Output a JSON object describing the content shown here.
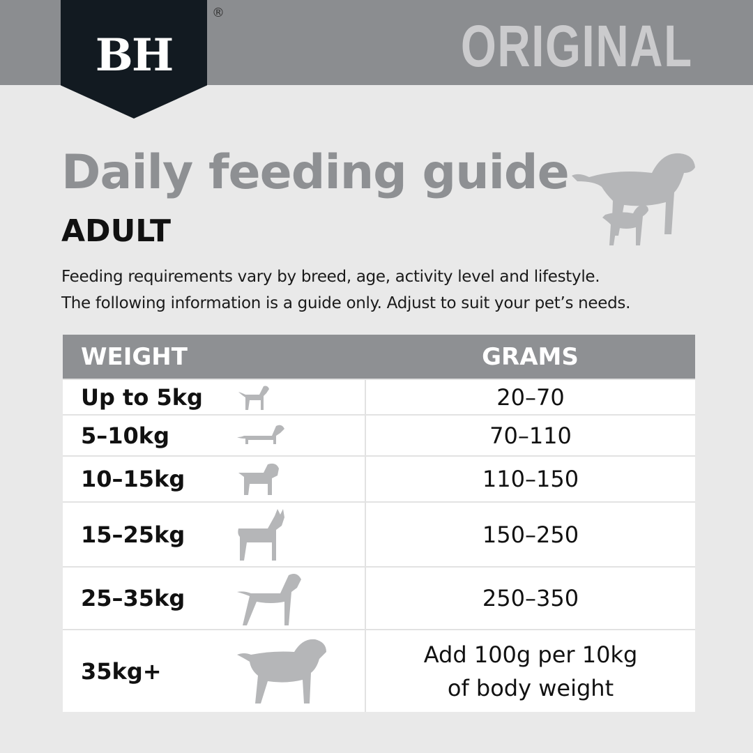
{
  "brand": {
    "logo": "BH",
    "registered_mark": "®",
    "variant": "ORIGINAL"
  },
  "heading": {
    "title": "Daily feeding guide",
    "subtitle": "ADULT"
  },
  "description": [
    "Feeding requirements vary by breed, age, activity level and lifestyle.",
    "The following information is a guide only. Adjust to suit your pet’s needs."
  ],
  "table": {
    "headers": {
      "weight": "WEIGHT",
      "grams": "GRAMS"
    },
    "rows": [
      {
        "weight": "Up to 5kg",
        "grams": "20–70",
        "icon": "small-dog-icon"
      },
      {
        "weight": "5–10kg",
        "grams": "70–110",
        "icon": "dachshund-icon"
      },
      {
        "weight": "10–15kg",
        "grams": "110–150",
        "icon": "bulldog-icon"
      },
      {
        "weight": "15–25kg",
        "grams": "150–250",
        "icon": "terrier-icon"
      },
      {
        "weight": "25–35kg",
        "grams": "250–350",
        "icon": "pointer-dog-icon"
      },
      {
        "weight": "35kg+",
        "grams": "Add 100g per 10kg",
        "grams_line2": "of body weight",
        "icon": "mastiff-icon"
      }
    ]
  },
  "colors": {
    "header_bar": "#8b8d90",
    "logo_bg": "#121a21",
    "variant_text": "#cbcbcd",
    "title": "#8e9093",
    "table_header": "#8e9093",
    "dog_icons": "#b5b6b8"
  }
}
